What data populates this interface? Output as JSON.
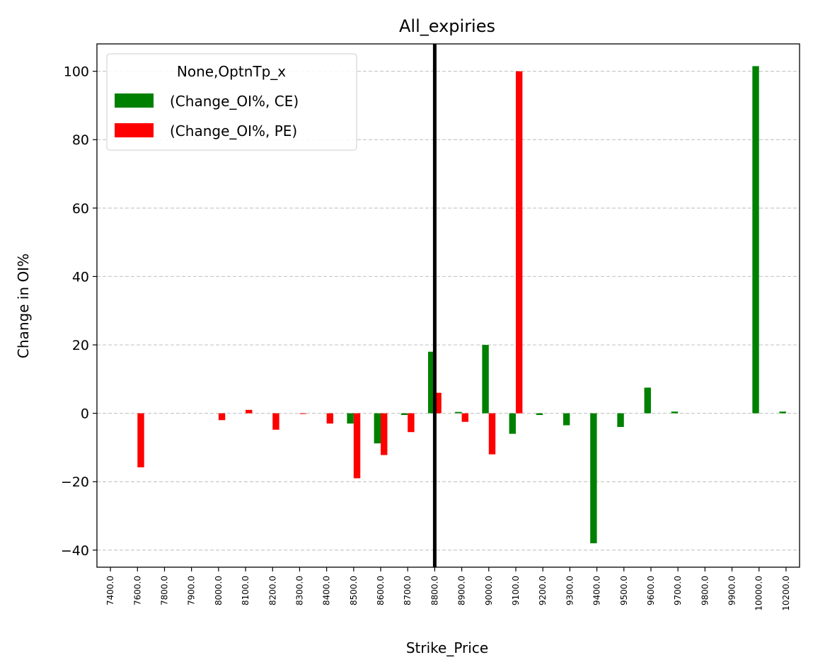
{
  "chart_data": {
    "type": "bar",
    "title": "All_expiries",
    "xlabel": "Strike_Price",
    "ylabel": "Change in OI%",
    "ylim": [
      -45,
      108
    ],
    "yticks": [
      -40,
      -20,
      0,
      20,
      40,
      60,
      80,
      100
    ],
    "ytick_labels": [
      "−40",
      "−20",
      "0",
      "20",
      "40",
      "60",
      "80",
      "100"
    ],
    "grid": "y-dashed",
    "legend": {
      "title": "None,OptnTp_x",
      "placement": "top-left"
    },
    "categories": [
      "7400.0",
      "7600.0",
      "7800.0",
      "7900.0",
      "8000.0",
      "8100.0",
      "8200.0",
      "8300.0",
      "8400.0",
      "8500.0",
      "8600.0",
      "8700.0",
      "8800.0",
      "8900.0",
      "9000.0",
      "9100.0",
      "9200.0",
      "9300.0",
      "9400.0",
      "9500.0",
      "9600.0",
      "9700.0",
      "9800.0",
      "9900.0",
      "10000.0",
      "10200.0"
    ],
    "series": [
      {
        "name": "(Change_OI%, CE)",
        "color": "#008000",
        "values": [
          0,
          0,
          0,
          0,
          0,
          0,
          0,
          0,
          0,
          -3,
          -8.8,
          -0.5,
          18,
          0.4,
          20,
          -6,
          -0.5,
          -3.5,
          -38,
          -4,
          7.5,
          0.5,
          0,
          0,
          101.5,
          0.5
        ]
      },
      {
        "name": "(Change_OI%, PE)",
        "color": "#ff0000",
        "values": [
          0,
          -15.8,
          0,
          0,
          -2,
          1,
          -4.8,
          -0.2,
          -3,
          -19,
          -12.2,
          -5.5,
          6,
          -2.5,
          -12,
          100,
          0,
          0,
          0,
          0,
          0,
          0,
          0,
          0,
          0,
          0
        ]
      }
    ],
    "vline": {
      "category": "8800.0",
      "color": "#000000"
    }
  }
}
